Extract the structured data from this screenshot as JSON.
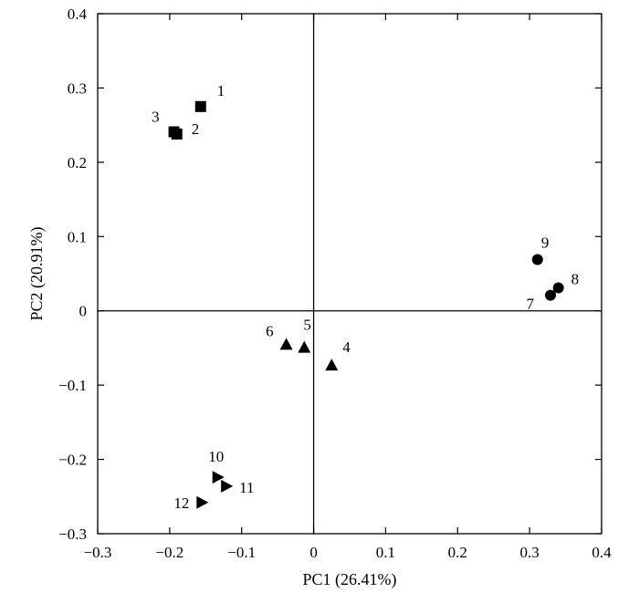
{
  "chart_data": {
    "type": "scatter",
    "title": "",
    "xlabel": "PC1 (26.41%)",
    "ylabel": "PC2 (20.91%)",
    "xlim": [
      -0.3,
      0.4
    ],
    "ylim": [
      -0.3,
      0.4
    ],
    "x_ticks": [
      -0.3,
      -0.2,
      -0.1,
      0,
      0.1,
      0.2,
      0.3,
      0.4
    ],
    "y_ticks": [
      -0.3,
      -0.2,
      -0.1,
      0,
      0.1,
      0.2,
      0.3,
      0.4
    ],
    "x_tick_labels": [
      "−0.3",
      "−0.2",
      "−0.1",
      "0",
      "0.1",
      "0.2",
      "0.3",
      "0.4"
    ],
    "y_tick_labels": [
      "−0.3",
      "−0.2",
      "−0.1",
      "0",
      "0.1",
      "0.2",
      "0.3",
      "0.4"
    ],
    "grid": false,
    "zero_lines": true,
    "marker_color": "#000000",
    "series": [
      {
        "marker": "square",
        "points": [
          {
            "label": "1",
            "x": -0.157,
            "y": 0.275
          },
          {
            "label": "2",
            "x": -0.19,
            "y": 0.238
          },
          {
            "label": "3",
            "x": -0.194,
            "y": 0.241
          }
        ]
      },
      {
        "marker": "triangle-up",
        "points": [
          {
            "label": "4",
            "x": 0.025,
            "y": -0.073
          },
          {
            "label": "5",
            "x": -0.013,
            "y": -0.049
          },
          {
            "label": "6",
            "x": -0.038,
            "y": -0.045
          }
        ]
      },
      {
        "marker": "circle",
        "points": [
          {
            "label": "7",
            "x": 0.329,
            "y": 0.021
          },
          {
            "label": "8",
            "x": 0.34,
            "y": 0.031
          },
          {
            "label": "9",
            "x": 0.311,
            "y": 0.069
          }
        ]
      },
      {
        "marker": "triangle-right",
        "points": [
          {
            "label": "10",
            "x": -0.133,
            "y": -0.224
          },
          {
            "label": "11",
            "x": -0.121,
            "y": -0.236
          },
          {
            "label": "12",
            "x": -0.155,
            "y": -0.258
          }
        ]
      }
    ]
  }
}
